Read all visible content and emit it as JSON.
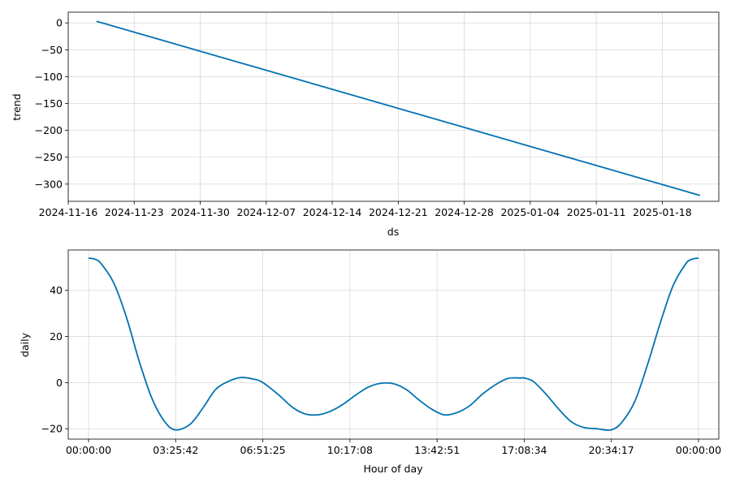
{
  "chart_data": [
    {
      "type": "line",
      "xlabel": "ds",
      "ylabel": "trend",
      "x_ticks": [
        "2024-11-16",
        "2024-11-23",
        "2024-11-30",
        "2024-12-07",
        "2024-12-14",
        "2024-12-21",
        "2024-12-28",
        "2025-01-04",
        "2025-01-11",
        "2025-01-18"
      ],
      "xlim": [
        "2024-11-16",
        "2025-01-24"
      ],
      "y_ticks": [
        0,
        -50,
        -100,
        -150,
        -200,
        -250,
        -300
      ],
      "ylim": [
        -332,
        20
      ],
      "grid": true,
      "series": [
        {
          "x": [
            "2024-11-19",
            "2025-01-22"
          ],
          "y": [
            3,
            -321
          ]
        }
      ]
    },
    {
      "type": "line",
      "xlabel": "Hour of day",
      "ylabel": "daily",
      "x_ticks": [
        "00:00:00",
        "03:25:42",
        "06:51:25",
        "10:17:08",
        "13:42:51",
        "17:08:34",
        "20:34:17",
        "00:00:00"
      ],
      "xlim": [
        -0.8,
        24.8
      ],
      "y_ticks": [
        40,
        20,
        0,
        -20
      ],
      "ylim": [
        -24.5,
        57.5
      ],
      "grid": true,
      "series": [
        {
          "x": [
            0,
            0.25,
            0.5,
            1,
            1.5,
            2,
            2.5,
            3,
            3.43,
            4,
            4.5,
            5,
            5.5,
            6,
            6.5,
            6.86,
            7.5,
            8,
            8.5,
            9,
            9.5,
            10,
            10.5,
            11,
            11.5,
            12,
            12.5,
            13,
            13.5,
            14,
            14.5,
            15,
            15.5,
            16,
            16.5,
            17,
            17.14,
            17.5,
            18,
            18.5,
            19,
            19.5,
            20,
            20.57,
            21,
            21.5,
            22,
            22.5,
            23,
            23.5,
            23.75,
            24
          ],
          "y": [
            54,
            53.5,
            51.5,
            43,
            28,
            9,
            -7,
            -17,
            -20.5,
            -18,
            -11,
            -3,
            0.5,
            2.2,
            1.5,
            0,
            -5.5,
            -10.5,
            -13.5,
            -14,
            -12.5,
            -9.5,
            -5.5,
            -2,
            -0.3,
            -0.5,
            -3,
            -7.5,
            -11.5,
            -14,
            -13,
            -10,
            -5,
            -1,
            1.8,
            2,
            2,
            0.5,
            -5,
            -11.5,
            -17,
            -19.5,
            -20,
            -20.5,
            -17,
            -8,
            8,
            26,
            42,
            51.5,
            53.5,
            54
          ]
        }
      ]
    }
  ]
}
